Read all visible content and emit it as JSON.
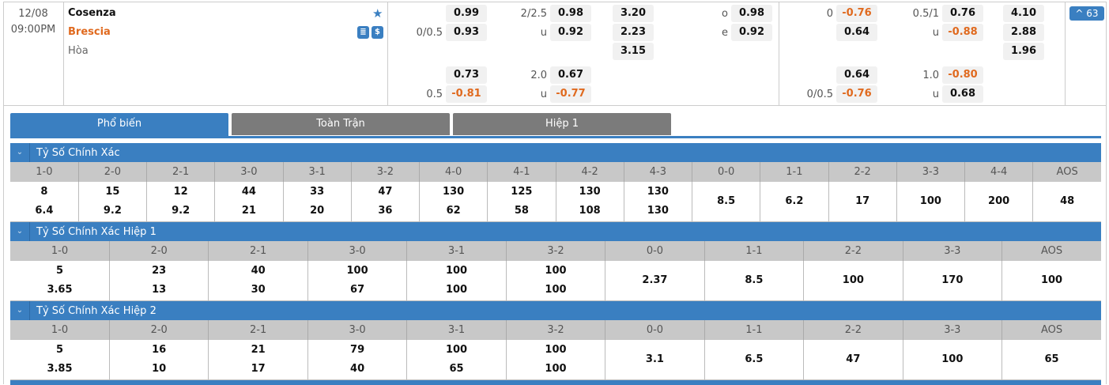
{
  "match": {
    "date": "12/08",
    "time": "09:00PM",
    "home": "Cosenza",
    "away": "Brescia",
    "draw": "Hòa",
    "more_count": "^ 63"
  },
  "icons": [
    "star-icon",
    "stats-icon",
    "dollar-icon"
  ],
  "colors": {
    "accent": "#3a7fc1",
    "negative": "#e06a1f",
    "tab_inactive": "#7b7b7b"
  },
  "odds_group1": [
    [
      [
        "",
        "0.99"
      ],
      [
        "2/2.5",
        "0.98"
      ],
      [
        "",
        "3.20"
      ],
      [
        "o",
        "0.98"
      ]
    ],
    [
      [
        "0/0.5",
        "0.93"
      ],
      [
        "u",
        "0.92"
      ],
      [
        "",
        "2.23"
      ],
      [
        "e",
        "0.92"
      ]
    ],
    [
      null,
      null,
      [
        "",
        "3.15"
      ],
      null
    ],
    [
      [
        "",
        "0.73"
      ],
      [
        "2.0",
        "0.67"
      ],
      null,
      null
    ],
    [
      [
        "0.5",
        "-0.81"
      ],
      [
        "u",
        "-0.77"
      ],
      null,
      null
    ]
  ],
  "odds_group2": [
    [
      [
        "0",
        "-0.76"
      ],
      [
        "0.5/1",
        "0.76"
      ],
      [
        "",
        "4.10"
      ]
    ],
    [
      [
        "",
        "0.64"
      ],
      [
        "u",
        "-0.88"
      ],
      [
        "",
        "2.88"
      ]
    ],
    [
      null,
      null,
      [
        "",
        "1.96"
      ]
    ],
    [
      [
        "",
        "0.64"
      ],
      [
        "1.0",
        "-0.80"
      ],
      null
    ],
    [
      [
        "0/0.5",
        "-0.76"
      ],
      [
        "u",
        "0.68"
      ],
      null
    ]
  ],
  "tabs": [
    "Phổ biến",
    "Toàn Trận",
    "Hiệp 1"
  ],
  "sections": [
    {
      "title": "Tỷ Số Chính Xác",
      "headers": [
        "1-0",
        "2-0",
        "2-1",
        "3-0",
        "3-1",
        "3-2",
        "4-0",
        "4-1",
        "4-2",
        "4-3",
        "0-0",
        "1-1",
        "2-2",
        "3-3",
        "4-4",
        "AOS"
      ],
      "values": [
        [
          "8",
          "6.4"
        ],
        [
          "15",
          "9.2"
        ],
        [
          "12",
          "9.2"
        ],
        [
          "44",
          "21"
        ],
        [
          "33",
          "20"
        ],
        [
          "47",
          "36"
        ],
        [
          "130",
          "62"
        ],
        [
          "125",
          "58"
        ],
        [
          "130",
          "108"
        ],
        [
          "130",
          "130"
        ],
        [
          "8.5"
        ],
        [
          "6.2"
        ],
        [
          "17"
        ],
        [
          "100"
        ],
        [
          "200"
        ],
        [
          "48"
        ]
      ]
    },
    {
      "title": "Tỷ Số Chính Xác Hiệp 1",
      "headers": [
        "1-0",
        "2-0",
        "2-1",
        "3-0",
        "3-1",
        "3-2",
        "0-0",
        "1-1",
        "2-2",
        "3-3",
        "AOS"
      ],
      "values": [
        [
          "5",
          "3.65"
        ],
        [
          "23",
          "13"
        ],
        [
          "40",
          "30"
        ],
        [
          "100",
          "67"
        ],
        [
          "100",
          "100"
        ],
        [
          "100",
          "100"
        ],
        [
          "2.37"
        ],
        [
          "8.5"
        ],
        [
          "100"
        ],
        [
          "170"
        ],
        [
          "100"
        ]
      ]
    },
    {
      "title": "Tỷ Số Chính Xác Hiệp 2",
      "headers": [
        "1-0",
        "2-0",
        "2-1",
        "3-0",
        "3-1",
        "3-2",
        "0-0",
        "1-1",
        "2-2",
        "3-3",
        "AOS"
      ],
      "values": [
        [
          "5",
          "3.85"
        ],
        [
          "16",
          "10"
        ],
        [
          "21",
          "17"
        ],
        [
          "79",
          "40"
        ],
        [
          "100",
          "65"
        ],
        [
          "100",
          "100"
        ],
        [
          "3.1"
        ],
        [
          "6.5"
        ],
        [
          "47"
        ],
        [
          "100"
        ],
        [
          "65"
        ]
      ]
    }
  ]
}
